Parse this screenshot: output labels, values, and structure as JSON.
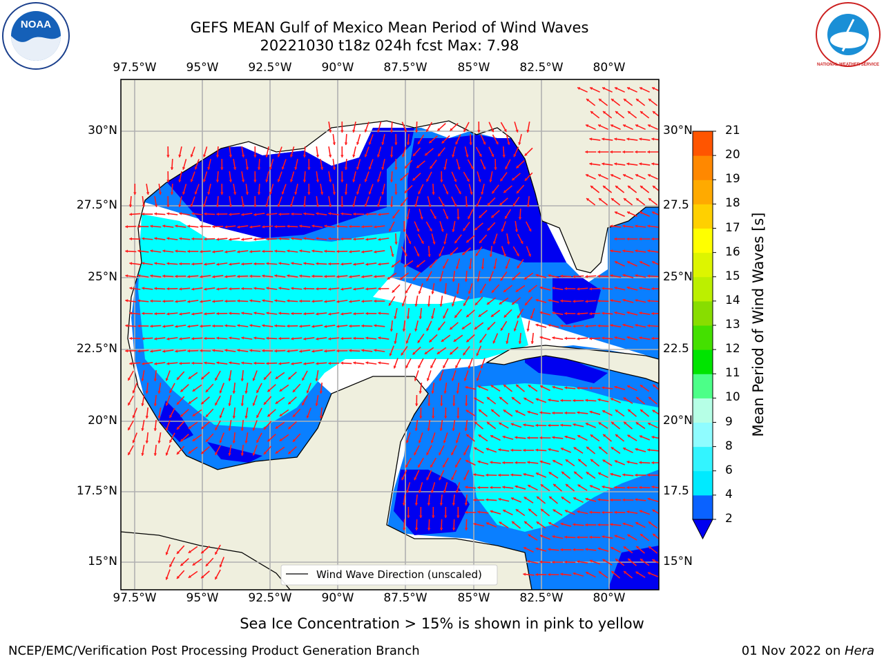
{
  "header": {
    "title_line1": "GEFS MEAN Gulf of Mexico Mean Period of Wind Waves",
    "title_line2": "20221030 t18z 024h fcst   Max: 7.98",
    "left_logo_text": "NOAA",
    "right_logo_text": "NATIONAL WEATHER SERVICE"
  },
  "axes": {
    "lon_ticks": [
      "97.5°W",
      "95°W",
      "92.5°W",
      "90°W",
      "87.5°W",
      "85°W",
      "82.5°W",
      "80°W"
    ],
    "lat_ticks": [
      "30°N",
      "27.5°N",
      "25°N",
      "22.5°N",
      "20°N",
      "17.5°N",
      "15°N"
    ],
    "lat_ticks_right": [
      "30°N",
      "27.5",
      "25°N",
      "22.5",
      "20°N",
      "17.5",
      "15°N"
    ]
  },
  "legend": {
    "label": "Wind Wave Direction (unscaled)"
  },
  "colorbar": {
    "label": "Mean Period of Wind Waves [s]",
    "ticks": [
      "2",
      "4",
      "6",
      "8",
      "9",
      "10",
      "11",
      "12",
      "13",
      "14",
      "15",
      "16",
      "17",
      "18",
      "19",
      "20",
      "21"
    ],
    "colors": [
      "#0a62ff",
      "#00eaff",
      "#33f4ff",
      "#8ffcff",
      "#b6ffe6",
      "#4cff88",
      "#00e400",
      "#44e000",
      "#88dd00",
      "#bcef00",
      "#ddf500",
      "#ffff00",
      "#ffd000",
      "#ffaa00",
      "#ff8800",
      "#ff5500",
      "#ff2a00",
      "#ff0000"
    ],
    "under_color": "#0000f0"
  },
  "colors": {
    "land": "#efefde",
    "level_1": "#0000f0",
    "level_2": "#0a7fff",
    "level_3": "#00ffff",
    "arrow": "#ff1a1a",
    "grid": "#b0b0b0"
  },
  "note": "Sea Ice Concentration > 15% is shown in pink to yellow",
  "footer": {
    "left": "NCEP/EMC/Verification Post Processing Product Generation Branch",
    "right_date": "01 Nov 2022 on ",
    "right_machine": "Hera"
  }
}
